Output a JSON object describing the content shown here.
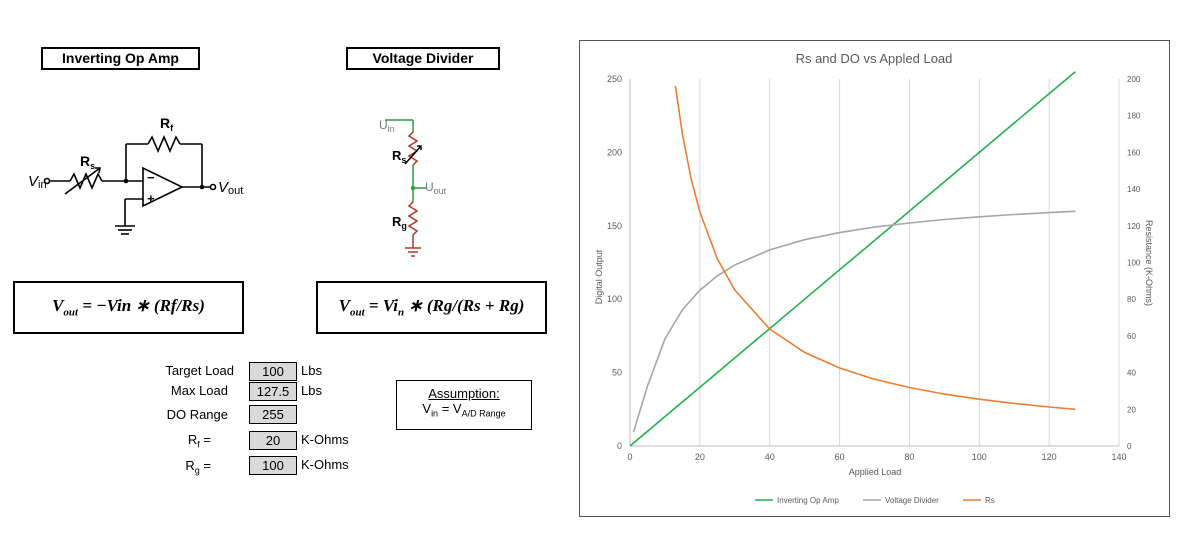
{
  "circuits": {
    "inverting": {
      "title": "Inverting Op Amp",
      "formula": "V_out = −Vin ∗ (Rf/Rs)",
      "label_rf": "R",
      "label_rf_sub": "f",
      "label_rs": "R",
      "label_rs_sub": "s",
      "label_vin": "V",
      "label_vin_sub": "in",
      "label_vout": "V",
      "label_vout_sub": "out",
      "label_minus": "−",
      "label_plus": "+"
    },
    "divider": {
      "title": "Voltage Divider",
      "formula": "V_out = Vi_n ∗ (Rg/(Rs + Rg)",
      "label_uin": "U",
      "label_uin_sub": "in",
      "label_rs": "R",
      "label_rs_sub": "s",
      "label_uout": "U",
      "label_uout_sub": "out",
      "label_rg": "R",
      "label_rg_sub": "g"
    }
  },
  "formulas": {
    "inv_v": "V",
    "inv_v_sub": "out",
    "inv_rest": " = −Vin ∗ (Rf/Rs)",
    "div_v": "V",
    "div_v_sub": "out",
    "div_mid": " = Vi",
    "div_mid_sub": "n",
    "div_rest": " ∗ (Rg/(Rs + Rg)"
  },
  "params": [
    {
      "label": "Target Load",
      "label_sub": "",
      "value": "100",
      "unit": "Lbs"
    },
    {
      "label": "Max Load",
      "label_sub": "",
      "value": "127.5",
      "unit": "Lbs"
    },
    {
      "label": "DO Range",
      "label_sub": "",
      "value": "255",
      "unit": ""
    },
    {
      "label": "R",
      "label_sub": "f",
      "label_suffix": " =",
      "value": "20",
      "unit": "K-Ohms"
    },
    {
      "label": "R",
      "label_sub": "g",
      "label_suffix": " =",
      "value": "100",
      "unit": "K-Ohms"
    }
  ],
  "assumption": {
    "heading": "Assumption:",
    "lhs": "V",
    "lhs_sub": "in",
    "eq": " = V",
    "rhs_sub": "A/D Range"
  },
  "colors": {
    "inverting": "#22b14c",
    "divider": "#a6a6a6",
    "rs": "#ed7d31",
    "circuit_green": "#2e9a3a",
    "circuit_red": "#b4362a"
  },
  "chart_data": {
    "type": "line",
    "title": "Rs and DO vs Appled Load",
    "xlabel": "Applied Load",
    "ylabel": "Digital Output",
    "y2label": "Resistance (K-Ohms)",
    "xlim": [
      0,
      140
    ],
    "ylim": [
      0,
      250
    ],
    "y2lim": [
      0,
      200
    ],
    "xticks": [
      0,
      20,
      40,
      60,
      80,
      100,
      120,
      140
    ],
    "yticks": [
      0,
      50,
      100,
      150,
      200,
      250
    ],
    "y2ticks": [
      0,
      20,
      40,
      60,
      80,
      100,
      120,
      140,
      160,
      180,
      200
    ],
    "grid": "vertical",
    "legend": "bottom",
    "series": [
      {
        "name": "Inverting Op Amp",
        "axis": "left",
        "x": [
          0,
          10,
          20,
          30,
          40,
          50,
          60,
          70,
          80,
          90,
          100,
          110,
          120,
          127.5
        ],
        "y": [
          0,
          20,
          40,
          60,
          80,
          100,
          120,
          140,
          160,
          180,
          200,
          220,
          240,
          255
        ]
      },
      {
        "name": "Voltage Divider",
        "axis": "left",
        "x": [
          1,
          5,
          10,
          15,
          20,
          25,
          30,
          40,
          50,
          60,
          70,
          80,
          90,
          100,
          110,
          120,
          127.5
        ],
        "y": [
          9.5,
          40.9,
          72.9,
          92.7,
          106.2,
          115.9,
          123.3,
          133.6,
          140.5,
          145.4,
          149.1,
          151.9,
          154.3,
          156.1,
          157.7,
          159.0,
          159.9
        ]
      },
      {
        "name": "Rs",
        "axis": "right",
        "x": [
          13,
          15,
          17.5,
          20,
          25,
          30,
          40,
          50,
          60,
          70,
          80,
          90,
          100,
          110,
          120,
          127.5
        ],
        "y": [
          196.2,
          170.0,
          145.7,
          127.5,
          102.0,
          85.0,
          63.75,
          51.0,
          42.5,
          36.4,
          31.9,
          28.3,
          25.5,
          23.2,
          21.25,
          20.0
        ]
      }
    ]
  }
}
